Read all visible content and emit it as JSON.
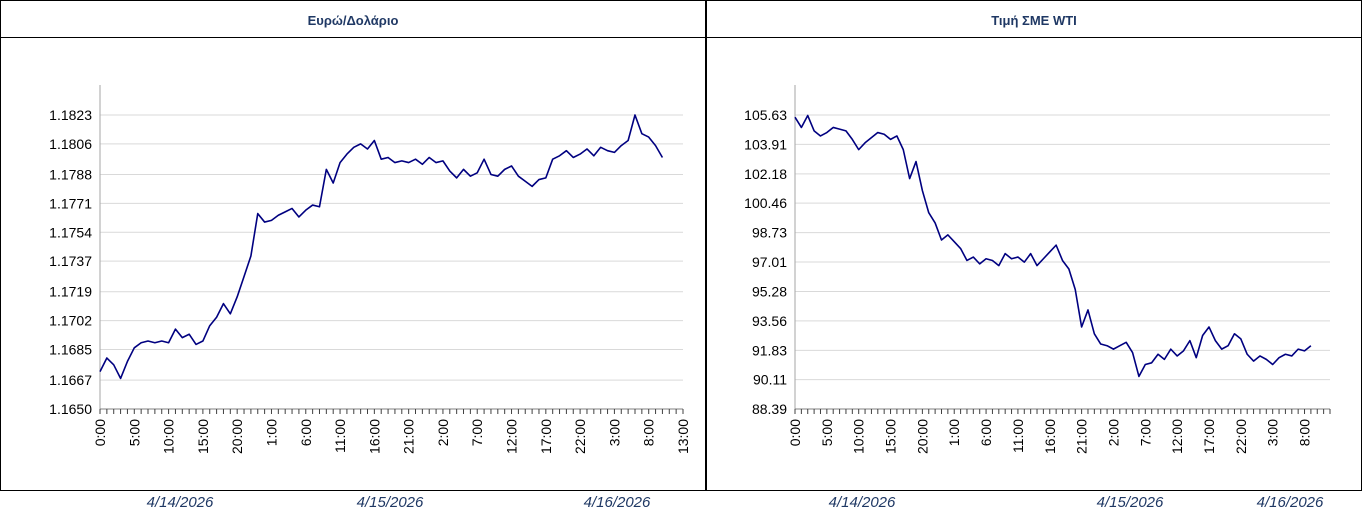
{
  "chart_data": [
    {
      "type": "line",
      "title": "Ευρώ/Δολάριο",
      "categories": [
        "0:00",
        null,
        null,
        null,
        null,
        "5:00",
        null,
        null,
        null,
        null,
        "10:00",
        null,
        null,
        null,
        null,
        "15:00",
        null,
        null,
        null,
        null,
        "20:00",
        null,
        null,
        null,
        null,
        "1:00",
        null,
        null,
        null,
        null,
        "6:00",
        null,
        null,
        null,
        null,
        "11:00",
        null,
        null,
        null,
        null,
        "16:00",
        null,
        null,
        null,
        null,
        "21:00",
        null,
        null,
        null,
        null,
        "2:00",
        null,
        null,
        null,
        null,
        "7:00",
        null,
        null,
        null,
        null,
        "12:00",
        null,
        null,
        null,
        null,
        "17:00",
        null,
        null,
        null,
        null,
        "22:00",
        null,
        null,
        null,
        null,
        "3:00",
        null,
        null,
        null,
        null,
        "8:00",
        null,
        null,
        null,
        null,
        "13:00"
      ],
      "series": [
        {
          "color": "#000080",
          "values": [
            1.1672,
            1.168,
            1.1676,
            1.1668,
            1.1678,
            1.1686,
            1.1689,
            1.169,
            1.1689,
            1.169,
            1.1689,
            1.1697,
            1.1692,
            1.1694,
            1.1688,
            1.169,
            1.1699,
            1.1704,
            1.1712,
            1.1706,
            1.1716,
            1.1728,
            1.174,
            1.1765,
            1.176,
            1.1761,
            1.1764,
            1.1766,
            1.1768,
            1.1763,
            1.1767,
            1.177,
            1.1769,
            1.1791,
            1.1783,
            1.1795,
            1.18,
            1.1804,
            1.1806,
            1.1803,
            1.1808,
            1.1797,
            1.1798,
            1.1795,
            1.1796,
            1.1795,
            1.1797,
            1.1794,
            1.1798,
            1.1795,
            1.1796,
            1.179,
            1.1786,
            1.1791,
            1.1787,
            1.1789,
            1.1797,
            1.1788,
            1.1787,
            1.1791,
            1.1793,
            1.1787,
            1.1784,
            1.1781,
            1.1785,
            1.1786,
            1.1797,
            1.1799,
            1.1802,
            1.1798,
            1.18,
            1.1803,
            1.1799,
            1.1804,
            1.1802,
            1.1801,
            1.1805,
            1.1808,
            1.1823,
            1.1812,
            1.181,
            1.1805,
            1.1798,
            null,
            null,
            null
          ]
        }
      ],
      "ylim": [
        1.165,
        1.1823
      ],
      "yticks": [
        {
          "value": 1.165,
          "label": "1.1650"
        },
        1.1667,
        1.1685,
        1.1702,
        1.1719,
        1.1737,
        1.1754,
        1.1771,
        1.1788,
        1.1806,
        1.1823
      ],
      "grid": true,
      "dates": [
        "4/14/2026",
        "4/15/2026",
        "4/16/2026"
      ]
    },
    {
      "type": "line",
      "title": "Τιμή ΣΜΕ WTI",
      "categories": [
        "0:00",
        null,
        null,
        null,
        null,
        "5:00",
        null,
        null,
        null,
        null,
        "10:00",
        null,
        null,
        null,
        null,
        "15:00",
        null,
        null,
        null,
        null,
        "20:00",
        null,
        null,
        null,
        null,
        "1:00",
        null,
        null,
        null,
        null,
        "6:00",
        null,
        null,
        null,
        null,
        "11:00",
        null,
        null,
        null,
        null,
        "16:00",
        null,
        null,
        null,
        null,
        "21:00",
        null,
        null,
        null,
        null,
        "2:00",
        null,
        null,
        null,
        null,
        "7:00",
        null,
        null,
        null,
        null,
        "12:00",
        null,
        null,
        null,
        null,
        "17:00",
        null,
        null,
        null,
        null,
        "22:00",
        null,
        null,
        null,
        null,
        "3:00",
        null,
        null,
        null,
        null,
        "8:00",
        null,
        null,
        null,
        null
      ],
      "series": [
        {
          "color": "#000080",
          "values": [
            105.5,
            104.9,
            105.6,
            104.7,
            104.4,
            104.6,
            104.9,
            104.8,
            104.7,
            104.2,
            103.6,
            104.0,
            104.3,
            104.6,
            104.5,
            104.2,
            104.4,
            103.6,
            101.9,
            102.9,
            101.2,
            99.9,
            99.3,
            98.3,
            98.6,
            98.2,
            97.8,
            97.1,
            97.3,
            96.9,
            97.2,
            97.1,
            96.8,
            97.5,
            97.2,
            97.3,
            97.0,
            97.5,
            96.8,
            97.2,
            97.6,
            98.0,
            97.1,
            96.6,
            95.4,
            93.2,
            94.2,
            92.8,
            92.2,
            92.1,
            91.9,
            92.1,
            92.3,
            91.7,
            90.3,
            91.0,
            91.1,
            91.6,
            91.3,
            91.9,
            91.5,
            91.8,
            92.4,
            91.4,
            92.7,
            93.2,
            92.4,
            91.9,
            92.1,
            92.8,
            92.5,
            91.6,
            91.2,
            91.5,
            91.3,
            91.0,
            91.4,
            91.6,
            91.5,
            91.9,
            91.8,
            92.1,
            null,
            null,
            null
          ]
        }
      ],
      "ylim": [
        88.39,
        105.63
      ],
      "yticks": [
        88.39,
        90.11,
        91.83,
        93.56,
        95.28,
        97.01,
        98.73,
        100.46,
        102.18,
        103.91,
        105.63
      ],
      "grid": true,
      "dates": [
        "4/14/2026",
        "4/15/2026",
        "4/16/2026"
      ]
    }
  ]
}
